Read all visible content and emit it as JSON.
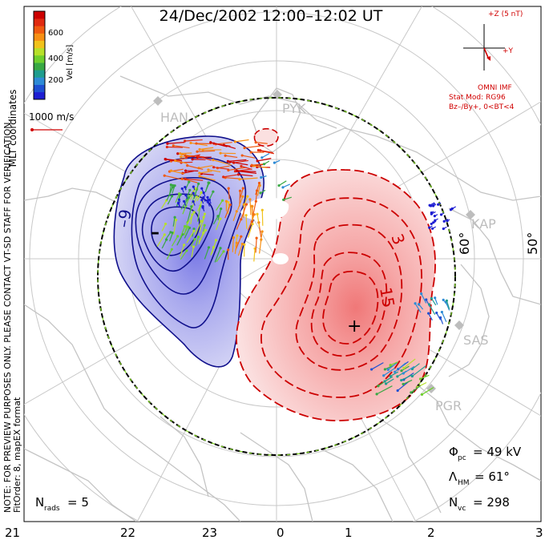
{
  "title": "24/Dec/2002 12:00–12:02 UT",
  "coordinates_label": "MLT coordinates",
  "note_line1": "NOTE: FOR PREVIEW PURPOSES ONLY. PLEASE CONTACT VT-SD STAFF FOR VERIFICATION.",
  "note_line2": "FitOrder: 8, mapEX format",
  "colorbar": {
    "label": "Vel [m/s]",
    "ticks": [
      "600",
      "400",
      "200"
    ],
    "colors": [
      "#1e1ed2",
      "#1e50d2",
      "#2e8bd6",
      "#1f9d8e",
      "#38a844",
      "#6fcf2e",
      "#b7e02a",
      "#f1c21b",
      "#f79014",
      "#ef5a10",
      "#e02a10",
      "#cc0000"
    ]
  },
  "reference_vector": {
    "label": "1000 m/s"
  },
  "imf": {
    "z_label": "+Z (5 nT)",
    "y_label": "+Y",
    "source": "OMNI IMF",
    "model": "Stat Mod: RG96",
    "condition": "Bz–/By+, 0<BT<4"
  },
  "stations": [
    "HAN",
    "PYK",
    "KAP",
    "SAS",
    "PGR"
  ],
  "latitude_labels": [
    "60°",
    "50°"
  ],
  "contour_labels": {
    "negative": "–9",
    "positive_a": "3",
    "positive_b": "15"
  },
  "extrema": {
    "min_marker": "–",
    "max_marker": "+"
  },
  "stats": {
    "phi_symbol": "Φ",
    "phi_sub": "pc",
    "phi_value": "= 49 kV",
    "lambda_symbol": "Λ",
    "lambda_sub": "HM",
    "lambda_value": "= 61°",
    "nvc_symbol": "N",
    "nvc_sub": "vc",
    "nvc_value": "= 298",
    "nrads_symbol": "N",
    "nrads_sub": "rads",
    "nrads_value": "= 5"
  },
  "mlt_ticks": [
    "21",
    "22",
    "23",
    "0",
    "1",
    "2",
    "3"
  ]
}
